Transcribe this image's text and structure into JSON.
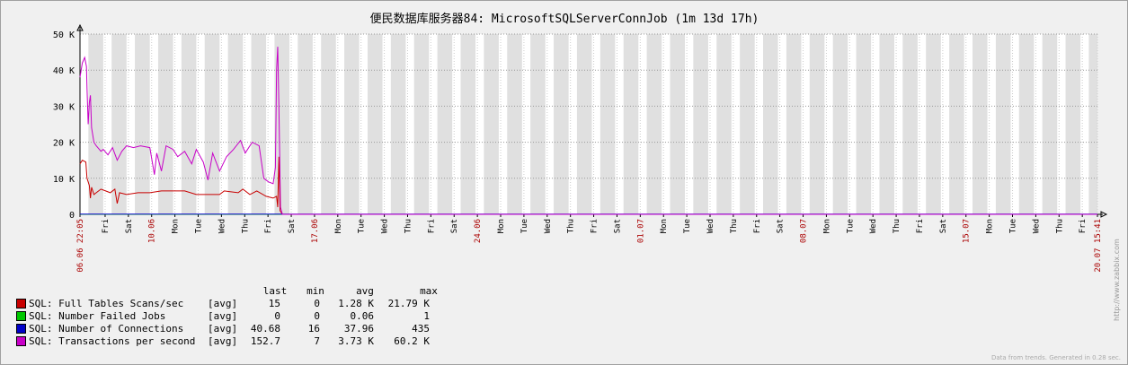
{
  "chart_data": {
    "type": "line",
    "title": "便民数据库服务器84: MicrosoftSQLServerConnJob (1m 13d 17h)",
    "y_ticks": [
      "0",
      "10 K",
      "20 K",
      "30 K",
      "40 K",
      "50 K"
    ],
    "ylim": [
      0,
      50000
    ],
    "x_ticks": [
      {
        "label": "06.06 22:05",
        "day": 0,
        "red": true
      },
      {
        "label": "Fri",
        "day": 1.08
      },
      {
        "label": "Sat",
        "day": 2.08
      },
      {
        "label": "10.06",
        "day": 3.08,
        "red": true
      },
      {
        "label": "Mon",
        "day": 4.08
      },
      {
        "label": "Tue",
        "day": 5.08
      },
      {
        "label": "Wed",
        "day": 6.08
      },
      {
        "label": "Thu",
        "day": 7.08
      },
      {
        "label": "Fri",
        "day": 8.08
      },
      {
        "label": "Sat",
        "day": 9.08
      },
      {
        "label": "17.06",
        "day": 10.08,
        "red": true
      },
      {
        "label": "Mon",
        "day": 11.08
      },
      {
        "label": "Tue",
        "day": 12.08
      },
      {
        "label": "Wed",
        "day": 13.08
      },
      {
        "label": "Thu",
        "day": 14.08
      },
      {
        "label": "Fri",
        "day": 15.08
      },
      {
        "label": "Sat",
        "day": 16.08
      },
      {
        "label": "24.06",
        "day": 17.08,
        "red": true
      },
      {
        "label": "Mon",
        "day": 18.08
      },
      {
        "label": "Tue",
        "day": 19.08
      },
      {
        "label": "Wed",
        "day": 20.08
      },
      {
        "label": "Thu",
        "day": 21.08
      },
      {
        "label": "Fri",
        "day": 22.08
      },
      {
        "label": "Sat",
        "day": 23.08
      },
      {
        "label": "01.07",
        "day": 24.08,
        "red": true
      },
      {
        "label": "Mon",
        "day": 25.08
      },
      {
        "label": "Tue",
        "day": 26.08
      },
      {
        "label": "Wed",
        "day": 27.08
      },
      {
        "label": "Thu",
        "day": 28.08
      },
      {
        "label": "Fri",
        "day": 29.08
      },
      {
        "label": "Sat",
        "day": 30.08
      },
      {
        "label": "08.07",
        "day": 31.08,
        "red": true
      },
      {
        "label": "Mon",
        "day": 32.08
      },
      {
        "label": "Tue",
        "day": 33.08
      },
      {
        "label": "Wed",
        "day": 34.08
      },
      {
        "label": "Thu",
        "day": 35.08
      },
      {
        "label": "Fri",
        "day": 36.08
      },
      {
        "label": "Sat",
        "day": 37.08
      },
      {
        "label": "15.07",
        "day": 38.08,
        "red": true
      },
      {
        "label": "Mon",
        "day": 39.08
      },
      {
        "label": "Tue",
        "day": 40.08
      },
      {
        "label": "Wed",
        "day": 41.08
      },
      {
        "label": "Thu",
        "day": 42.08
      },
      {
        "label": "Fri",
        "day": 43.08
      },
      {
        "label": "20.07 15:41",
        "day": 43.73,
        "red": true
      }
    ],
    "xlim_days": [
      0,
      43.73
    ],
    "series": [
      {
        "name": "SQL: Full Tables Scans/sec",
        "color": "#c80000",
        "points": [
          [
            0,
            14000
          ],
          [
            0.1,
            15000
          ],
          [
            0.25,
            14500
          ],
          [
            0.3,
            10000
          ],
          [
            0.4,
            8000
          ],
          [
            0.45,
            4500
          ],
          [
            0.5,
            7500
          ],
          [
            0.6,
            5500
          ],
          [
            0.7,
            6000
          ],
          [
            0.9,
            7000
          ],
          [
            1.1,
            6500
          ],
          [
            1.3,
            6000
          ],
          [
            1.5,
            7000
          ],
          [
            1.6,
            3000
          ],
          [
            1.7,
            6000
          ],
          [
            2.0,
            5500
          ],
          [
            2.5,
            6000
          ],
          [
            3.0,
            6000
          ],
          [
            3.5,
            6500
          ],
          [
            4.0,
            6500
          ],
          [
            4.5,
            6500
          ],
          [
            5.0,
            5500
          ],
          [
            5.5,
            5500
          ],
          [
            6.0,
            5500
          ],
          [
            6.2,
            6500
          ],
          [
            6.8,
            6000
          ],
          [
            7.0,
            7000
          ],
          [
            7.3,
            5500
          ],
          [
            7.6,
            6500
          ],
          [
            8.0,
            5000
          ],
          [
            8.3,
            4500
          ],
          [
            8.45,
            5000
          ],
          [
            8.5,
            2000
          ],
          [
            8.55,
            16000
          ],
          [
            8.6,
            1000
          ],
          [
            8.7,
            0
          ],
          [
            43.73,
            0
          ]
        ]
      },
      {
        "name": "SQL: Number Failed Jobs",
        "color": "#00c800",
        "points": [
          [
            0,
            0
          ],
          [
            43.73,
            0
          ]
        ]
      },
      {
        "name": "SQL: Number of Connections",
        "color": "#0000c8",
        "points": [
          [
            0,
            40
          ],
          [
            43.73,
            40
          ]
        ]
      },
      {
        "name": "SQL: Transactions per second",
        "color": "#c800c8",
        "points": [
          [
            0,
            38000
          ],
          [
            0.05,
            40000
          ],
          [
            0.1,
            42000
          ],
          [
            0.2,
            43500
          ],
          [
            0.28,
            41000
          ],
          [
            0.3,
            35000
          ],
          [
            0.35,
            25000
          ],
          [
            0.4,
            31000
          ],
          [
            0.45,
            33000
          ],
          [
            0.5,
            24000
          ],
          [
            0.6,
            20000
          ],
          [
            0.7,
            19000
          ],
          [
            0.9,
            17500
          ],
          [
            1.0,
            18000
          ],
          [
            1.2,
            16500
          ],
          [
            1.4,
            18500
          ],
          [
            1.6,
            15000
          ],
          [
            1.8,
            17500
          ],
          [
            2.0,
            19000
          ],
          [
            2.3,
            18500
          ],
          [
            2.6,
            19000
          ],
          [
            3.0,
            18500
          ],
          [
            3.2,
            11000
          ],
          [
            3.3,
            17000
          ],
          [
            3.5,
            12000
          ],
          [
            3.7,
            19000
          ],
          [
            4.0,
            18000
          ],
          [
            4.2,
            16000
          ],
          [
            4.5,
            17500
          ],
          [
            4.8,
            14000
          ],
          [
            5.0,
            18000
          ],
          [
            5.3,
            14500
          ],
          [
            5.5,
            9500
          ],
          [
            5.7,
            17000
          ],
          [
            6.0,
            12000
          ],
          [
            6.3,
            16000
          ],
          [
            6.6,
            18000
          ],
          [
            6.9,
            20500
          ],
          [
            7.1,
            17000
          ],
          [
            7.4,
            20000
          ],
          [
            7.7,
            19000
          ],
          [
            7.9,
            10000
          ],
          [
            8.1,
            9000
          ],
          [
            8.3,
            8500
          ],
          [
            8.4,
            13000
          ],
          [
            8.45,
            40000
          ],
          [
            8.5,
            46500
          ],
          [
            8.55,
            30000
          ],
          [
            8.62,
            2000
          ],
          [
            8.7,
            0
          ],
          [
            43.73,
            0
          ]
        ]
      }
    ]
  },
  "legend": {
    "headers": {
      "last": "last",
      "min": "min",
      "avg": "avg",
      "max": "max"
    },
    "rows": [
      {
        "name": "SQL: Full Tables Scans/sec",
        "color": "#c80000",
        "func": "[avg]",
        "last": "15",
        "min": "0",
        "avg": "1.28 K",
        "max": "21.79 K"
      },
      {
        "name": "SQL: Number Failed Jobs",
        "color": "#00c800",
        "func": "[avg]",
        "last": "0",
        "min": "0",
        "avg": "0.06",
        "max": "1"
      },
      {
        "name": "SQL: Number of Connections",
        "color": "#0000c8",
        "func": "[avg]",
        "last": "40.68",
        "min": "16",
        "avg": "37.96",
        "max": "435"
      },
      {
        "name": "SQL: Transactions per second",
        "color": "#c800c8",
        "func": "[avg]",
        "last": "152.7",
        "min": "7",
        "avg": "3.73 K",
        "max": "60.2 K"
      }
    ]
  },
  "footer": "Data from trends. Generated in 0.28 sec.",
  "side_url": "http://www.zabbix.com"
}
